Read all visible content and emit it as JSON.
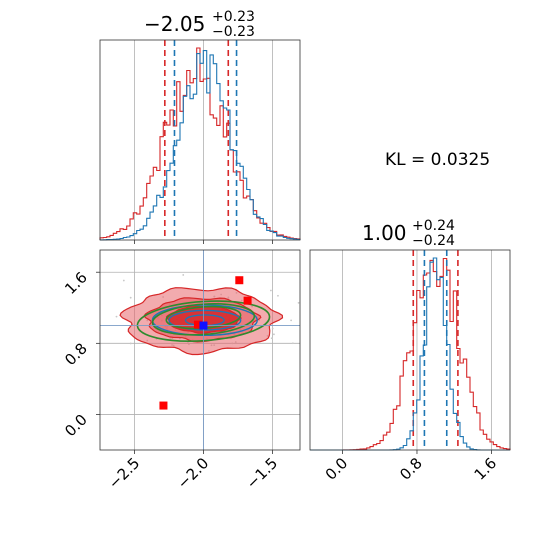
{
  "colors": {
    "red": "#d62728",
    "blue": "#1f77b4",
    "green": "#2e8b2e",
    "grid": "#b0b0b0",
    "fill_red": "#e8666b"
  },
  "texts": {
    "title_top_main": "−2.05",
    "title_top_sup": "+0.23",
    "title_top_sub": "−0.23",
    "title_right_main": "1.00",
    "title_right_sup": "+0.24",
    "title_right_sub": "−0.24",
    "kl": "KL = 0.0325"
  },
  "chart_data": [
    {
      "type": "histogram",
      "panel": "marginal-x",
      "xlim": [
        -2.75,
        -1.3
      ],
      "series": [
        {
          "color": "red",
          "center": -2.05,
          "width": 0.23,
          "quantiles": [
            -2.28,
            -1.82
          ]
        },
        {
          "color": "blue",
          "center": -1.99,
          "width": 0.2,
          "quantiles": [
            -2.21,
            -1.76
          ]
        }
      ],
      "grid": true
    },
    {
      "type": "histogram",
      "panel": "marginal-y",
      "xlim": [
        -0.35,
        1.8
      ],
      "xticks": [
        "0.0",
        "0.8",
        "1.6"
      ],
      "series": [
        {
          "color": "red",
          "center": 1.0,
          "width": 0.24,
          "quantiles": [
            0.76,
            1.24
          ]
        },
        {
          "color": "blue",
          "center": 1.0,
          "width": 0.12,
          "quantiles": [
            0.88,
            1.12
          ]
        }
      ],
      "grid": true
    },
    {
      "type": "scatter",
      "panel": "joint",
      "xlim": [
        -2.75,
        -1.3
      ],
      "ylim": [
        -0.4,
        1.85
      ],
      "xticks": [
        "−2.5",
        "−2.0",
        "−1.5"
      ],
      "yticks": [
        "0.0",
        "0.8",
        "1.6"
      ],
      "markers": [
        {
          "x": -2.29,
          "y": 0.1,
          "color": "red"
        },
        {
          "x": -1.74,
          "y": 1.51,
          "color": "red"
        },
        {
          "x": -1.68,
          "y": 1.28,
          "color": "red"
        },
        {
          "x": -2.04,
          "y": 1.01,
          "color": "red"
        },
        {
          "x": -2.0,
          "y": 1.0,
          "color": "blue"
        }
      ],
      "ellipses": [
        {
          "cx": -2.0,
          "cy": 1.05,
          "rx": 0.48,
          "ry": 0.22,
          "color": "green"
        },
        {
          "cx": -2.0,
          "cy": 1.07,
          "rx": 0.37,
          "ry": 0.17,
          "color": "green"
        },
        {
          "cx": -2.0,
          "cy": 1.09,
          "rx": 0.27,
          "ry": 0.12,
          "color": "green"
        }
      ],
      "grid": true
    }
  ]
}
